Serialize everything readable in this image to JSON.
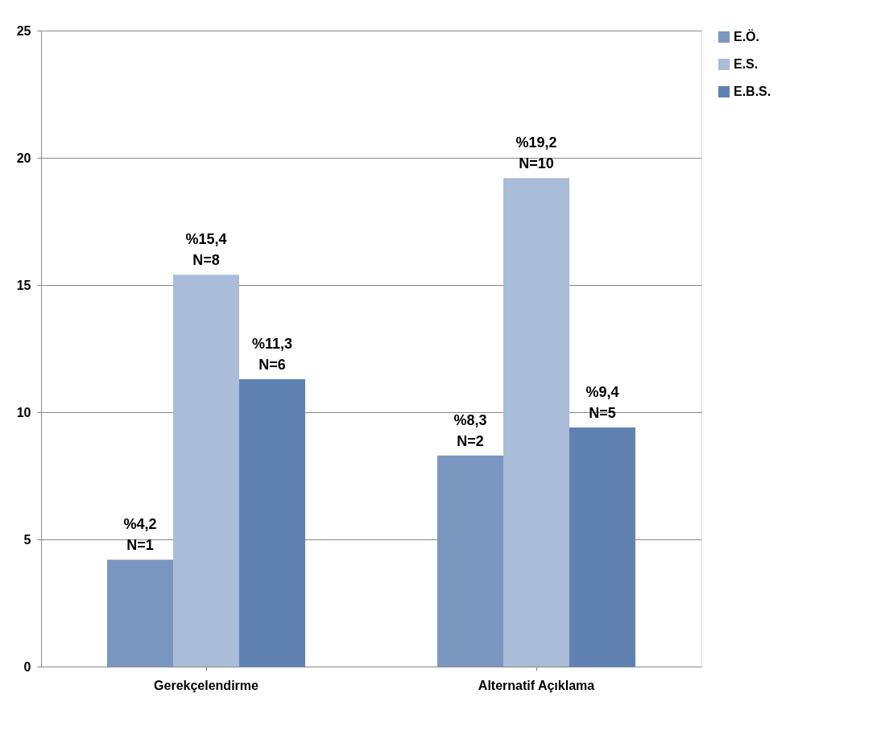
{
  "chart_data": {
    "type": "bar",
    "categories": [
      "Gerekçelendirme",
      "Alternatif Açıklama"
    ],
    "series": [
      {
        "name": "E.Ö.",
        "color": "#7b97c0",
        "values": [
          4.2,
          8.3
        ],
        "value_labels": [
          "%4,2\nN=1",
          "%8,3\nN=2"
        ]
      },
      {
        "name": "E.S.",
        "color": "#a9bcd8",
        "values": [
          15.4,
          19.2
        ],
        "value_labels": [
          "%15,4\nN=8",
          "%19,2\nN=10"
        ]
      },
      {
        "name": "E.B.S.",
        "color": "#5f82b3",
        "values": [
          11.3,
          9.4
        ],
        "value_labels": [
          "%11,3\nN=6",
          "%9,4\nN=5"
        ]
      }
    ],
    "ylim": [
      0,
      25
    ],
    "yticks": [
      0,
      5,
      10,
      15,
      20,
      25
    ],
    "grid": "y",
    "legend": "right"
  }
}
